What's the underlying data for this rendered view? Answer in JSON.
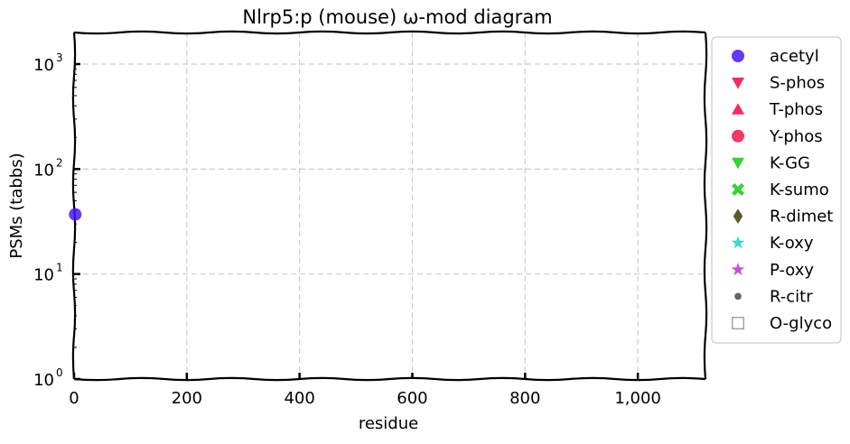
{
  "chart_data": {
    "type": "scatter",
    "title": "Nlrp5:p (mouse) ω-mod diagram",
    "xlabel": "residue",
    "ylabel": "PSMs (tabbs)",
    "xlim": [
      0,
      1120
    ],
    "ylim": [
      1,
      2000
    ],
    "yscale": "log",
    "grid": true,
    "legend_position": "outside-right",
    "x_ticks": [
      {
        "value": 0,
        "label": "0"
      },
      {
        "value": 200,
        "label": "200"
      },
      {
        "value": 400,
        "label": "400"
      },
      {
        "value": 600,
        "label": "600"
      },
      {
        "value": 800,
        "label": "800"
      },
      {
        "value": 1000,
        "label": "1,000"
      }
    ],
    "y_ticks": [
      {
        "value": 1,
        "base": "10",
        "exp": "0"
      },
      {
        "value": 10,
        "base": "10",
        "exp": "1"
      },
      {
        "value": 100,
        "base": "10",
        "exp": "2"
      },
      {
        "value": 1000,
        "base": "10",
        "exp": "3"
      }
    ],
    "series": [
      {
        "name": "acetyl",
        "marker": "circle",
        "color": "#4a17f2",
        "points": [
          {
            "x": 2,
            "y": 37
          }
        ]
      },
      {
        "name": "S-phos",
        "marker": "triangle-down",
        "color": "#f0154f",
        "points": []
      },
      {
        "name": "T-phos",
        "marker": "triangle-up",
        "color": "#f0154f",
        "points": []
      },
      {
        "name": "Y-phos",
        "marker": "circle",
        "color": "#f0154f",
        "points": []
      },
      {
        "name": "K-GG",
        "marker": "triangle-down",
        "color": "#22cc22",
        "points": []
      },
      {
        "name": "K-sumo",
        "marker": "x",
        "color": "#22cc22",
        "points": []
      },
      {
        "name": "R-dimet",
        "marker": "diamond",
        "color": "#5c5a28",
        "points": []
      },
      {
        "name": "K-oxy",
        "marker": "star",
        "color": "#22d0d0",
        "points": []
      },
      {
        "name": "P-oxy",
        "marker": "star",
        "color": "#c030d8",
        "points": []
      },
      {
        "name": "R-citr",
        "marker": "small-circle",
        "color": "#666666",
        "points": []
      },
      {
        "name": "O-glyco",
        "marker": "square-open",
        "color": "#999999",
        "points": []
      }
    ]
  }
}
